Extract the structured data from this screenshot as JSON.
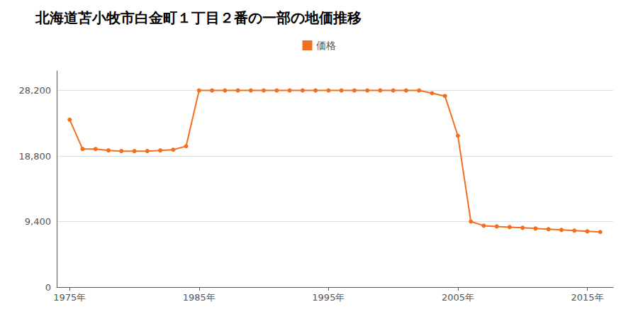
{
  "chart_data": {
    "type": "line",
    "title": "北海道苫小牧市白金町１丁目２番の一部の地価推移",
    "x": [
      1975,
      1976,
      1977,
      1978,
      1979,
      1980,
      1981,
      1982,
      1983,
      1984,
      1985,
      1986,
      1987,
      1988,
      1989,
      1990,
      1991,
      1992,
      1993,
      1994,
      1995,
      1996,
      1997,
      1998,
      1999,
      2000,
      2001,
      2002,
      2003,
      2004,
      2005,
      2006,
      2007,
      2008,
      2009,
      2010,
      2011,
      2012,
      2013,
      2014,
      2015,
      2016
    ],
    "series": [
      {
        "name": "価格",
        "color": "#f07020",
        "marker": "circle",
        "values": [
          24000,
          19800,
          19800,
          19600,
          19500,
          19500,
          19500,
          19600,
          19700,
          20200,
          28200,
          28200,
          28200,
          28200,
          28200,
          28200,
          28200,
          28200,
          28200,
          28200,
          28200,
          28200,
          28200,
          28200,
          28200,
          28200,
          28200,
          28200,
          27800,
          27400,
          21700,
          9400,
          8800,
          8700,
          8600,
          8500,
          8400,
          8300,
          8200,
          8100,
          8000,
          7900
        ]
      }
    ],
    "xlim": [
      1974,
      2017
    ],
    "xticks": [
      {
        "value": 1975,
        "label": "1975年"
      },
      {
        "value": 1985,
        "label": "1985年"
      },
      {
        "value": 1995,
        "label": "1995年"
      },
      {
        "value": 2005,
        "label": "2005年"
      },
      {
        "value": 2015,
        "label": "2015年"
      }
    ],
    "ylim": [
      0,
      31000
    ],
    "yticks": [
      0,
      {
        "value": 9400,
        "label": "9,400"
      },
      {
        "value": 18800,
        "label": "18,800"
      },
      {
        "value": 28200,
        "label": "28,200"
      }
    ],
    "grid": true,
    "legend": "top"
  }
}
